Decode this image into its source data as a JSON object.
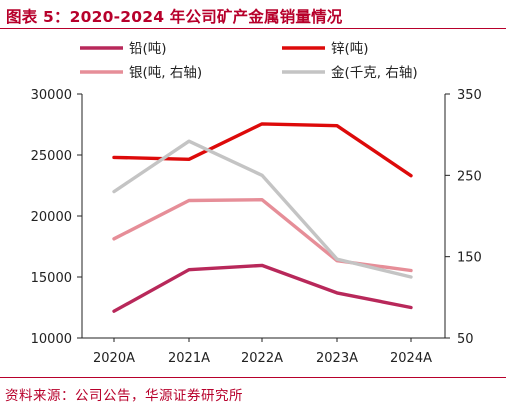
{
  "title": "图表 5：2020-2024 年公司矿产金属销量情况",
  "source": "资料来源：公司公告，华源证券研究所",
  "chart_data": {
    "type": "line",
    "categories": [
      "2020A",
      "2021A",
      "2022A",
      "2023A",
      "2024A"
    ],
    "y_left": {
      "ylim": [
        10000,
        30000
      ],
      "ticks": [
        "30000",
        "25000",
        "20000",
        "15000",
        "10000"
      ]
    },
    "y_right": {
      "ylim": [
        50,
        350
      ],
      "ticks": [
        "350",
        "250",
        "150",
        "50"
      ]
    },
    "grid": false,
    "legend_position": "top",
    "series": [
      {
        "name": "铅(吨)",
        "axis": "left",
        "color": "#b8285a",
        "values": [
          12200,
          15600,
          15950,
          13700,
          12500
        ]
      },
      {
        "name": "锌(吨)",
        "axis": "left",
        "color": "#dd0a0a",
        "values": [
          24800,
          24650,
          27550,
          27400,
          23300
        ]
      },
      {
        "name": "银(吨, 右轴)",
        "axis": "right",
        "color": "#e68e98",
        "values": [
          172,
          219,
          220,
          145,
          133
        ]
      },
      {
        "name": "金(千克, 右轴)",
        "axis": "right",
        "color": "#c4c4c4",
        "values": [
          230,
          292,
          250,
          147,
          125
        ]
      }
    ]
  }
}
